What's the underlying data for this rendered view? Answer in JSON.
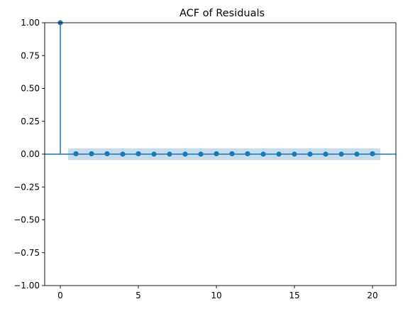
{
  "chart_data": {
    "type": "stem",
    "title": "ACF of Residuals",
    "xlabel": "",
    "ylabel": "",
    "xlim": [
      -1,
      21.5
    ],
    "ylim": [
      -1.0,
      1.0
    ],
    "xticks": [
      0,
      5,
      10,
      15,
      20
    ],
    "xtick_labels": [
      "0",
      "5",
      "10",
      "15",
      "20"
    ],
    "yticks": [
      -1.0,
      -0.75,
      -0.5,
      -0.25,
      0.0,
      0.25,
      0.5,
      0.75,
      1.0
    ],
    "ytick_labels": [
      "−1.00",
      "−0.75",
      "−0.50",
      "−0.25",
      "0.00",
      "0.25",
      "0.50",
      "0.75",
      "1.00"
    ],
    "grid": false,
    "lags": [
      0,
      1,
      2,
      3,
      4,
      5,
      6,
      7,
      8,
      9,
      10,
      11,
      12,
      13,
      14,
      15,
      16,
      17,
      18,
      19,
      20
    ],
    "values": [
      1.0,
      0.003,
      0.003,
      0.003,
      0.0,
      0.003,
      0.0,
      0.0,
      0.0,
      0.0,
      0.003,
      0.003,
      0.003,
      0.0,
      0.0,
      0.0,
      0.0,
      0.0,
      0.0,
      0.0,
      0.003
    ],
    "confidence_band": {
      "x_range": [
        0.5,
        20.5
      ],
      "lower": -0.045,
      "upper": 0.045
    },
    "colors": {
      "series": "#1f77b4",
      "band": "#1f77b4",
      "axes": "#000000"
    }
  }
}
